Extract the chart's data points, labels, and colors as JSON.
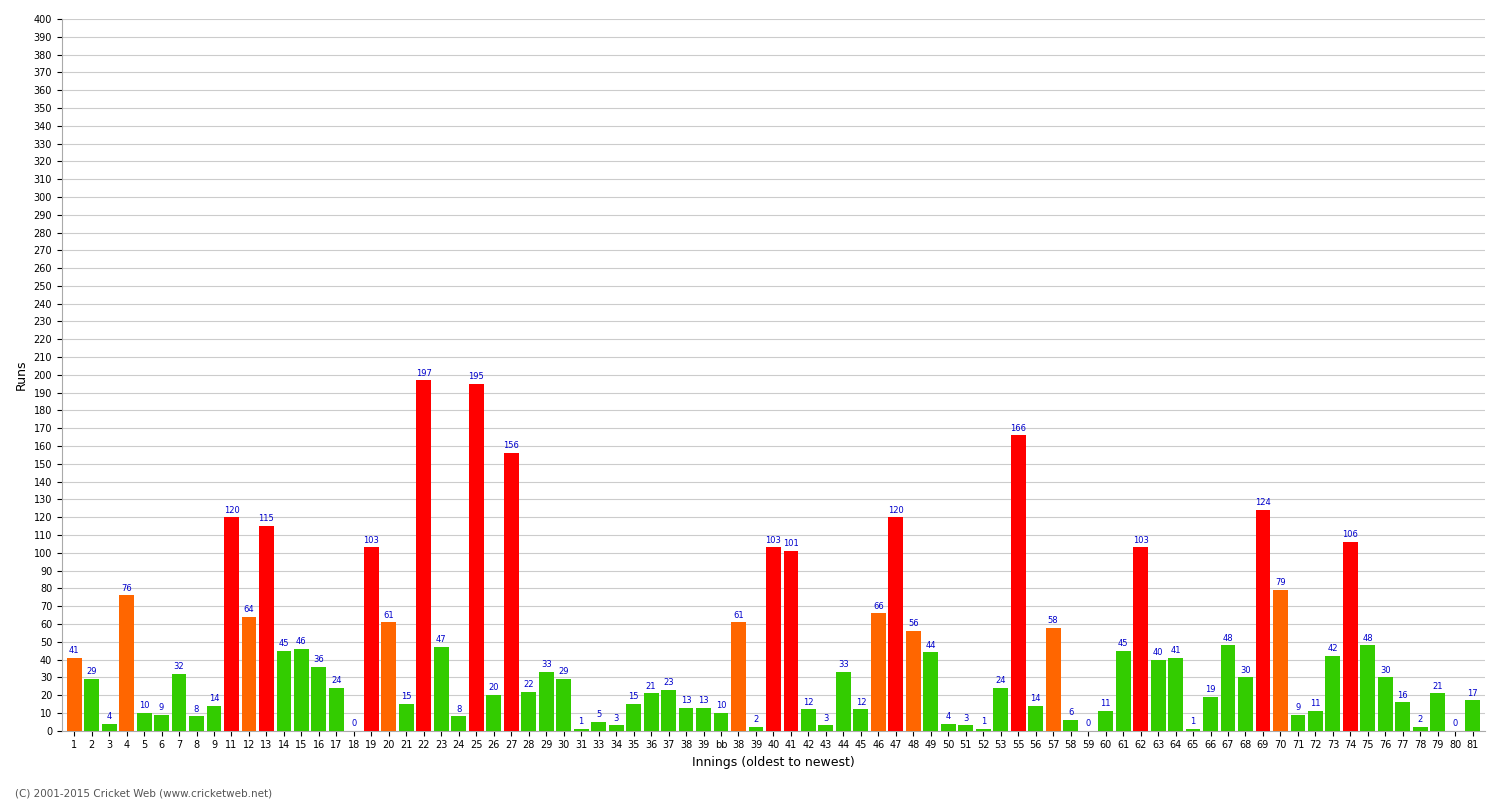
{
  "title": "",
  "xlabel": "Innings (oldest to newest)",
  "ylabel": "Runs",
  "ylim": [
    0,
    400
  ],
  "yticks": [
    0,
    10,
    20,
    30,
    40,
    50,
    60,
    70,
    80,
    90,
    100,
    110,
    120,
    130,
    140,
    150,
    160,
    170,
    180,
    190,
    200,
    210,
    220,
    230,
    240,
    250,
    260,
    270,
    280,
    290,
    300,
    310,
    320,
    330,
    340,
    350,
    360,
    370,
    380,
    390,
    400
  ],
  "innings": [
    {
      "idx": 0,
      "label": "1",
      "val": 41,
      "color": "#ff6600"
    },
    {
      "idx": 1,
      "label": "2",
      "val": 29,
      "color": "#33cc00"
    },
    {
      "idx": 2,
      "label": "3",
      "val": 4,
      "color": "#33cc00"
    },
    {
      "idx": 3,
      "label": "4",
      "val": 76,
      "color": "#ff6600"
    },
    {
      "idx": 4,
      "label": "5",
      "val": 10,
      "color": "#33cc00"
    },
    {
      "idx": 5,
      "label": "6",
      "val": 9,
      "color": "#33cc00"
    },
    {
      "idx": 6,
      "label": "7",
      "val": 32,
      "color": "#33cc00"
    },
    {
      "idx": 7,
      "label": "8",
      "val": 8,
      "color": "#33cc00"
    },
    {
      "idx": 8,
      "label": "9",
      "val": 14,
      "color": "#33cc00"
    },
    {
      "idx": 9,
      "label": "11",
      "val": 120,
      "color": "#ff0000"
    },
    {
      "idx": 10,
      "label": "12",
      "val": 64,
      "color": "#ff6600"
    },
    {
      "idx": 11,
      "label": "13",
      "val": 115,
      "color": "#ff0000"
    },
    {
      "idx": 12,
      "label": "14",
      "val": 45,
      "color": "#33cc00"
    },
    {
      "idx": 13,
      "label": "15",
      "val": 46,
      "color": "#33cc00"
    },
    {
      "idx": 14,
      "label": "16",
      "val": 36,
      "color": "#33cc00"
    },
    {
      "idx": 15,
      "label": "17",
      "val": 24,
      "color": "#33cc00"
    },
    {
      "idx": 16,
      "label": "18",
      "val": 0,
      "color": "#33cc00"
    },
    {
      "idx": 17,
      "label": "19",
      "val": 103,
      "color": "#ff0000"
    },
    {
      "idx": 18,
      "label": "20",
      "val": 61,
      "color": "#ff6600"
    },
    {
      "idx": 19,
      "label": "21",
      "val": 15,
      "color": "#33cc00"
    },
    {
      "idx": 20,
      "label": "22",
      "val": 197,
      "color": "#ff0000"
    },
    {
      "idx": 21,
      "label": "23",
      "val": 47,
      "color": "#33cc00"
    },
    {
      "idx": 22,
      "label": "24",
      "val": 8,
      "color": "#33cc00"
    },
    {
      "idx": 23,
      "label": "25",
      "val": 195,
      "color": "#ff0000"
    },
    {
      "idx": 24,
      "label": "26",
      "val": 20,
      "color": "#33cc00"
    },
    {
      "idx": 25,
      "label": "27",
      "val": 156,
      "color": "#ff0000"
    },
    {
      "idx": 26,
      "label": "28",
      "val": 22,
      "color": "#33cc00"
    },
    {
      "idx": 27,
      "label": "29",
      "val": 33,
      "color": "#33cc00"
    },
    {
      "idx": 28,
      "label": "30",
      "val": 29,
      "color": "#33cc00"
    },
    {
      "idx": 29,
      "label": "31",
      "val": 1,
      "color": "#33cc00"
    },
    {
      "idx": 30,
      "label": "33",
      "val": 5,
      "color": "#33cc00"
    },
    {
      "idx": 31,
      "label": "34",
      "val": 3,
      "color": "#33cc00"
    },
    {
      "idx": 32,
      "label": "35",
      "val": 15,
      "color": "#33cc00"
    },
    {
      "idx": 33,
      "label": "36",
      "val": 21,
      "color": "#33cc00"
    },
    {
      "idx": 34,
      "label": "37",
      "val": 23,
      "color": "#33cc00"
    },
    {
      "idx": 35,
      "label": "38",
      "val": 13,
      "color": "#33cc00"
    },
    {
      "idx": 36,
      "label": "39",
      "val": 13,
      "color": "#33cc00"
    },
    {
      "idx": 37,
      "label": "bb",
      "val": 10,
      "color": "#33cc00"
    },
    {
      "idx": 38,
      "label": "38",
      "val": 61,
      "color": "#ff6600"
    },
    {
      "idx": 39,
      "label": "39",
      "val": 2,
      "color": "#33cc00"
    },
    {
      "idx": 40,
      "label": "40",
      "val": 103,
      "color": "#ff0000"
    },
    {
      "idx": 41,
      "label": "41",
      "val": 101,
      "color": "#ff0000"
    },
    {
      "idx": 42,
      "label": "42",
      "val": 12,
      "color": "#33cc00"
    },
    {
      "idx": 43,
      "label": "43",
      "val": 3,
      "color": "#33cc00"
    },
    {
      "idx": 44,
      "label": "44",
      "val": 33,
      "color": "#33cc00"
    },
    {
      "idx": 45,
      "label": "45",
      "val": 12,
      "color": "#33cc00"
    },
    {
      "idx": 46,
      "label": "46",
      "val": 66,
      "color": "#ff6600"
    },
    {
      "idx": 47,
      "label": "47",
      "val": 120,
      "color": "#ff0000"
    },
    {
      "idx": 48,
      "label": "48",
      "val": 56,
      "color": "#ff6600"
    },
    {
      "idx": 49,
      "label": "49",
      "val": 44,
      "color": "#33cc00"
    },
    {
      "idx": 50,
      "label": "50",
      "val": 4,
      "color": "#33cc00"
    },
    {
      "idx": 51,
      "label": "51",
      "val": 3,
      "color": "#33cc00"
    },
    {
      "idx": 52,
      "label": "52",
      "val": 1,
      "color": "#33cc00"
    },
    {
      "idx": 53,
      "label": "53",
      "val": 24,
      "color": "#33cc00"
    },
    {
      "idx": 54,
      "label": "55",
      "val": 166,
      "color": "#ff0000"
    },
    {
      "idx": 55,
      "label": "56",
      "val": 14,
      "color": "#33cc00"
    },
    {
      "idx": 56,
      "label": "57",
      "val": 58,
      "color": "#ff6600"
    },
    {
      "idx": 57,
      "label": "58",
      "val": 6,
      "color": "#33cc00"
    },
    {
      "idx": 58,
      "label": "59",
      "val": 0,
      "color": "#33cc00"
    },
    {
      "idx": 59,
      "label": "60",
      "val": 11,
      "color": "#33cc00"
    },
    {
      "idx": 60,
      "label": "61",
      "val": 45,
      "color": "#33cc00"
    },
    {
      "idx": 61,
      "label": "62",
      "val": 103,
      "color": "#ff0000"
    },
    {
      "idx": 62,
      "label": "63",
      "val": 40,
      "color": "#33cc00"
    },
    {
      "idx": 63,
      "label": "64",
      "val": 41,
      "color": "#33cc00"
    },
    {
      "idx": 64,
      "label": "65",
      "val": 1,
      "color": "#33cc00"
    },
    {
      "idx": 65,
      "label": "66",
      "val": 19,
      "color": "#33cc00"
    },
    {
      "idx": 66,
      "label": "67",
      "val": 48,
      "color": "#33cc00"
    },
    {
      "idx": 67,
      "label": "68",
      "val": 30,
      "color": "#33cc00"
    },
    {
      "idx": 68,
      "label": "69",
      "val": 124,
      "color": "#ff0000"
    },
    {
      "idx": 69,
      "label": "70",
      "val": 79,
      "color": "#ff6600"
    },
    {
      "idx": 70,
      "label": "71",
      "val": 9,
      "color": "#33cc00"
    },
    {
      "idx": 71,
      "label": "72",
      "val": 11,
      "color": "#33cc00"
    },
    {
      "idx": 72,
      "label": "73",
      "val": 42,
      "color": "#33cc00"
    },
    {
      "idx": 73,
      "label": "74",
      "val": 106,
      "color": "#ff0000"
    },
    {
      "idx": 74,
      "label": "75",
      "val": 48,
      "color": "#33cc00"
    },
    {
      "idx": 75,
      "label": "76",
      "val": 30,
      "color": "#33cc00"
    },
    {
      "idx": 76,
      "label": "77",
      "val": 16,
      "color": "#33cc00"
    },
    {
      "idx": 77,
      "label": "78",
      "val": 2,
      "color": "#33cc00"
    },
    {
      "idx": 78,
      "label": "79",
      "val": 21,
      "color": "#33cc00"
    },
    {
      "idx": 79,
      "label": "80",
      "val": 0,
      "color": "#33cc00"
    },
    {
      "idx": 80,
      "label": "81",
      "val": 17,
      "color": "#33cc00"
    }
  ],
  "bar_width": 0.85,
  "background_color": "#ffffff",
  "grid_color": "#cccccc",
  "label_color": "#0000cc",
  "label_fontsize": 6,
  "axis_fontsize": 9,
  "tick_fontsize": 7,
  "footer_text": "(C) 2001-2015 Cricket Web (www.cricketweb.net)"
}
